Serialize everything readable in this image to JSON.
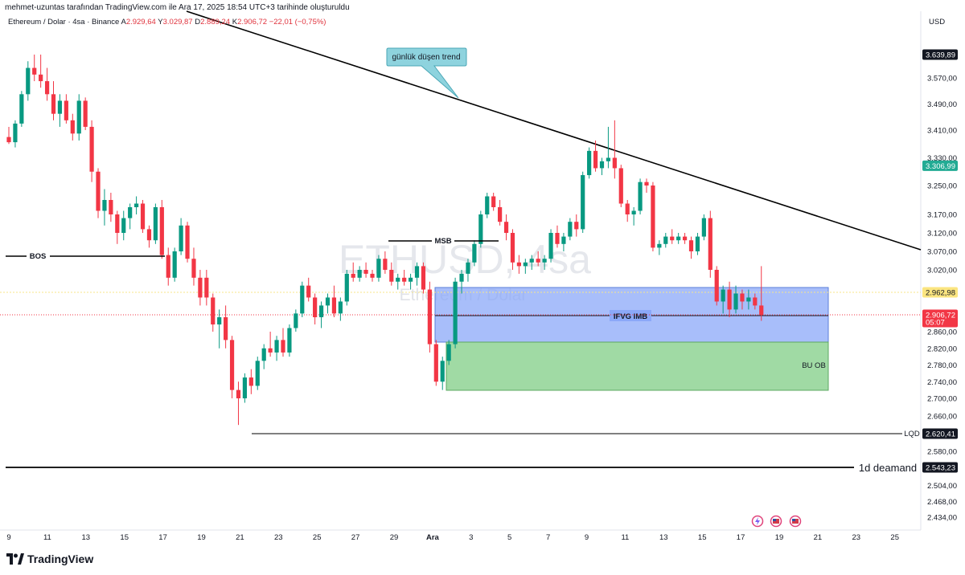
{
  "header": {
    "credit": "mehmet-uzuntas tarafından TradingView.com ile Ara 17, 2025 18:54 UTC+3 tarihinde oluşturuldu",
    "symbol": "Ethereum / Dolar · 4sa · Binance",
    "open_label": "A",
    "open": "2.929,64",
    "high_label": "Y",
    "high": "3.029,87",
    "low_label": "D",
    "low": "2.889,24",
    "close_label": "K",
    "close": "2.906,72",
    "change": "−22,01 (−0,75%)"
  },
  "currency": "USD",
  "brand": "TradingView",
  "watermark": {
    "symbol": "ETHUSD, 4sa",
    "name": "Ethereum / Dolar"
  },
  "colors": {
    "up": "#089981",
    "down": "#f23645",
    "box_blue": "#8ba8f8",
    "box_green": "#8fd494",
    "callout": "#8ed3de"
  },
  "chart_data": {
    "type": "candlestick",
    "price_axis": {
      "ticks": [
        "3.570,00",
        "3.490,00",
        "3.410,00",
        "3.330,00",
        "3.250,00",
        "3.170,00",
        "3.120,00",
        "3.070,00",
        "3.020,00",
        "2.860,00",
        "2.820,00",
        "2.780,00",
        "2.740,00",
        "2.700,00",
        "2.660,00",
        "2.580,00",
        "2.504,00",
        "2.468,00",
        "2.434,00"
      ],
      "tick_values": [
        3570,
        3490,
        3410,
        3330,
        3250,
        3170,
        3120,
        3070,
        3020,
        2860,
        2820,
        2780,
        2740,
        2700,
        2660,
        2580,
        2504,
        2468,
        2434
      ]
    },
    "x_axis": {
      "labels": [
        "9",
        "11",
        "13",
        "15",
        "17",
        "19",
        "21",
        "23",
        "25",
        "27",
        "29",
        "Ara",
        "3",
        "5",
        "7",
        "9",
        "11",
        "13",
        "15",
        "17",
        "19",
        "21",
        "23",
        "25"
      ]
    },
    "price_labels": [
      {
        "text": "3.639,89",
        "value": 3639.89,
        "style": "dark"
      },
      {
        "text": "3.306,99",
        "value": 3306.99,
        "style": "green"
      },
      {
        "text": "2.962,98",
        "value": 2962.98,
        "style": "yellow"
      },
      {
        "text": "2.906,72",
        "value": 2906.72,
        "style": "red",
        "sub": "05:07"
      },
      {
        "text": "2.620,41",
        "value": 2620.41,
        "style": "dark"
      },
      {
        "text": "2.543,23",
        "value": 2543.23,
        "style": "dark"
      }
    ],
    "candles": [
      [
        0,
        3390,
        3420,
        3370,
        3375
      ],
      [
        1,
        3375,
        3440,
        3360,
        3430
      ],
      [
        2,
        3430,
        3530,
        3420,
        3520
      ],
      [
        3,
        3520,
        3620,
        3500,
        3600
      ],
      [
        4,
        3600,
        3640,
        3560,
        3580
      ],
      [
        5,
        3580,
        3640,
        3540,
        3560
      ],
      [
        6,
        3560,
        3600,
        3500,
        3520
      ],
      [
        7,
        3520,
        3560,
        3440,
        3460
      ],
      [
        8,
        3460,
        3520,
        3420,
        3500
      ],
      [
        9,
        3500,
        3520,
        3430,
        3440
      ],
      [
        10,
        3440,
        3460,
        3380,
        3400
      ],
      [
        11,
        3400,
        3520,
        3380,
        3500
      ],
      [
        12,
        3500,
        3510,
        3410,
        3420
      ],
      [
        13,
        3420,
        3440,
        3260,
        3290
      ],
      [
        14,
        3290,
        3300,
        3160,
        3180
      ],
      [
        15,
        3180,
        3240,
        3140,
        3210
      ],
      [
        16,
        3210,
        3230,
        3150,
        3170
      ],
      [
        17,
        3170,
        3180,
        3090,
        3120
      ],
      [
        18,
        3120,
        3180,
        3100,
        3160
      ],
      [
        19,
        3160,
        3200,
        3130,
        3190
      ],
      [
        20,
        3190,
        3220,
        3170,
        3200
      ],
      [
        21,
        3200,
        3210,
        3120,
        3130
      ],
      [
        22,
        3130,
        3140,
        3080,
        3100
      ],
      [
        23,
        3100,
        3200,
        3090,
        3190
      ],
      [
        24,
        3190,
        3210,
        3050,
        3060
      ],
      [
        25,
        3060,
        3080,
        2980,
        3000
      ],
      [
        26,
        3000,
        3080,
        2990,
        3070
      ],
      [
        27,
        3070,
        3160,
        3060,
        3140
      ],
      [
        28,
        3140,
        3150,
        3040,
        3050
      ],
      [
        29,
        3050,
        3080,
        2980,
        3000
      ],
      [
        30,
        3000,
        3020,
        2930,
        2950
      ],
      [
        31,
        3000,
        3020,
        2930,
        2950
      ],
      [
        32,
        2950,
        2960,
        2860,
        2880
      ],
      [
        33,
        2880,
        2920,
        2820,
        2900
      ],
      [
        34,
        2900,
        2930,
        2820,
        2840
      ],
      [
        35,
        2840,
        2850,
        2700,
        2720
      ],
      [
        36,
        2720,
        2740,
        2640,
        2700
      ],
      [
        37,
        2700,
        2760,
        2690,
        2750
      ],
      [
        38,
        2750,
        2770,
        2710,
        2730
      ],
      [
        39,
        2730,
        2800,
        2720,
        2790
      ],
      [
        40,
        2790,
        2830,
        2770,
        2820
      ],
      [
        41,
        2820,
        2860,
        2800,
        2810
      ],
      [
        42,
        2810,
        2850,
        2790,
        2840
      ],
      [
        43,
        2840,
        2870,
        2800,
        2810
      ],
      [
        44,
        2810,
        2880,
        2800,
        2870
      ],
      [
        45,
        2870,
        2920,
        2860,
        2910
      ],
      [
        46,
        2910,
        2990,
        2900,
        2980
      ],
      [
        47,
        2980,
        3000,
        2940,
        2950
      ],
      [
        48,
        2950,
        2960,
        2880,
        2900
      ],
      [
        49,
        2900,
        2940,
        2870,
        2930
      ],
      [
        50,
        2930,
        2960,
        2910,
        2950
      ],
      [
        51,
        2950,
        2980,
        2900,
        2910
      ],
      [
        52,
        2910,
        2950,
        2890,
        2940
      ],
      [
        53,
        2940,
        3020,
        2930,
        3010
      ],
      [
        54,
        3010,
        3040,
        2990,
        3000
      ],
      [
        55,
        3000,
        3030,
        2990,
        3020
      ],
      [
        56,
        3020,
        3040,
        3000,
        3010
      ],
      [
        57,
        3010,
        3020,
        2990,
        3000
      ],
      [
        58,
        3000,
        3060,
        2990,
        3050
      ],
      [
        59,
        3050,
        3070,
        3010,
        3020
      ],
      [
        60,
        3020,
        3040,
        2980,
        2990
      ],
      [
        61,
        2990,
        3010,
        2970,
        3000
      ],
      [
        62,
        3000,
        3020,
        2980,
        2990
      ],
      [
        63,
        2990,
        3010,
        2970,
        3000
      ],
      [
        64,
        3000,
        3040,
        2980,
        3030
      ],
      [
        65,
        3030,
        3040,
        2960,
        2970
      ],
      [
        66,
        2970,
        2990,
        2810,
        2830
      ],
      [
        67,
        2830,
        2840,
        2730,
        2740
      ],
      [
        68,
        2740,
        2800,
        2720,
        2790
      ],
      [
        69,
        2790,
        2840,
        2780,
        2830
      ],
      [
        70,
        2830,
        3000,
        2820,
        2990
      ],
      [
        71,
        2990,
        3020,
        2960,
        3010
      ],
      [
        72,
        3010,
        3050,
        2990,
        3040
      ],
      [
        73,
        3040,
        3100,
        3030,
        3090
      ],
      [
        74,
        3090,
        3180,
        3080,
        3170
      ],
      [
        75,
        3170,
        3230,
        3160,
        3220
      ],
      [
        76,
        3220,
        3230,
        3180,
        3190
      ],
      [
        77,
        3190,
        3210,
        3140,
        3150
      ],
      [
        78,
        3150,
        3170,
        3100,
        3120
      ],
      [
        79,
        3120,
        3130,
        3020,
        3040
      ],
      [
        80,
        3040,
        3060,
        3010,
        3030
      ],
      [
        81,
        3030,
        3050,
        3010,
        3040
      ],
      [
        82,
        3040,
        3060,
        3020,
        3050
      ],
      [
        83,
        3050,
        3070,
        3030,
        3040
      ],
      [
        84,
        3040,
        3060,
        3020,
        3050
      ],
      [
        85,
        3050,
        3130,
        3040,
        3120
      ],
      [
        86,
        3120,
        3140,
        3080,
        3090
      ],
      [
        87,
        3090,
        3120,
        3070,
        3110
      ],
      [
        88,
        3110,
        3160,
        3100,
        3150
      ],
      [
        89,
        3150,
        3170,
        3110,
        3130
      ],
      [
        90,
        3130,
        3290,
        3120,
        3280
      ],
      [
        91,
        3280,
        3360,
        3270,
        3350
      ],
      [
        92,
        3350,
        3380,
        3290,
        3300
      ],
      [
        93,
        3300,
        3330,
        3280,
        3320
      ],
      [
        94,
        3320,
        3420,
        3300,
        3330
      ],
      [
        95,
        3330,
        3440,
        3270,
        3300
      ],
      [
        96,
        3300,
        3310,
        3190,
        3200
      ],
      [
        97,
        3200,
        3210,
        3150,
        3170
      ],
      [
        98,
        3170,
        3190,
        3140,
        3180
      ],
      [
        99,
        3180,
        3270,
        3170,
        3260
      ],
      [
        100,
        3260,
        3270,
        3230,
        3250
      ],
      [
        101,
        3250,
        3260,
        3070,
        3080
      ],
      [
        102,
        3080,
        3100,
        3060,
        3090
      ],
      [
        103,
        3090,
        3120,
        3080,
        3110
      ],
      [
        104,
        3110,
        3130,
        3090,
        3100
      ],
      [
        105,
        3100,
        3120,
        3090,
        3110
      ],
      [
        106,
        3110,
        3120,
        3090,
        3100
      ],
      [
        107,
        3100,
        3110,
        3050,
        3070
      ],
      [
        108,
        3070,
        3120,
        3060,
        3110
      ],
      [
        109,
        3110,
        3170,
        3100,
        3160
      ],
      [
        110,
        3160,
        3180,
        3000,
        3020
      ],
      [
        111,
        3020,
        3030,
        2930,
        2940
      ],
      [
        112,
        2940,
        2980,
        2910,
        2970
      ],
      [
        113,
        2970,
        2990,
        2900,
        2920
      ],
      [
        114,
        2920,
        2980,
        2910,
        2960
      ],
      [
        115,
        2960,
        2970,
        2920,
        2940
      ],
      [
        116,
        2940,
        2970,
        2920,
        2950
      ],
      [
        117,
        2950,
        2960,
        2920,
        2930
      ],
      [
        118,
        2930,
        3030,
        2890,
        2906
      ]
    ]
  },
  "annotations": {
    "callout": "günlük düşen trend",
    "bos": "BOS",
    "msb": "MSB",
    "ifvg": "IFVG IMB",
    "bu_ob": "BU OB",
    "lqd": "LQD",
    "demand": "1d deamand"
  }
}
